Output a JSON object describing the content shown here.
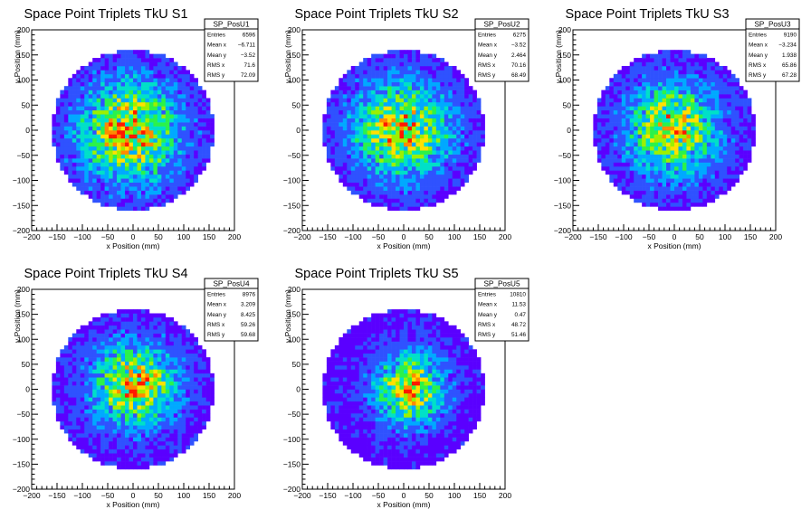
{
  "chart_data": [
    {
      "type": "heatmap",
      "title": "Space Point Triplets TkU S1",
      "xlabel": "x Position (mm)",
      "ylabel": "y Position (mm)",
      "xlim": [
        -200,
        200
      ],
      "ylim": [
        -200,
        200
      ],
      "xticks": [
        "−200",
        "−150",
        "−100",
        "−50",
        "0",
        "50",
        "100",
        "150",
        "200"
      ],
      "yticks": [
        "−200",
        "−150",
        "−100",
        "−50",
        "0",
        "50",
        "100",
        "150",
        "200"
      ],
      "stats": {
        "name": "SP_PosU1",
        "rows": [
          [
            "Entries",
            "6596"
          ],
          [
            "Mean x",
            "−6.711"
          ],
          [
            "Mean y",
            "−3.52"
          ],
          [
            "RMS x",
            "71.6"
          ],
          [
            "RMS y",
            "72.09"
          ]
        ]
      },
      "distribution": {
        "radius": 160,
        "mean_x": -6.711,
        "mean_y": -3.52,
        "rms_x": 71.6,
        "rms_y": 72.09,
        "entries": 6596
      }
    },
    {
      "type": "heatmap",
      "title": "Space Point Triplets TkU S2",
      "xlabel": "x Position (mm)",
      "ylabel": "y Position (mm)",
      "xlim": [
        -200,
        200
      ],
      "ylim": [
        -200,
        200
      ],
      "xticks": [
        "−200",
        "−150",
        "−100",
        "−50",
        "0",
        "50",
        "100",
        "150",
        "200"
      ],
      "yticks": [
        "−200",
        "−150",
        "−100",
        "−50",
        "0",
        "50",
        "100",
        "150",
        "200"
      ],
      "stats": {
        "name": "SP_PosU2",
        "rows": [
          [
            "Entries",
            "6275"
          ],
          [
            "Mean x",
            "−3.52"
          ],
          [
            "Mean y",
            "2.464"
          ],
          [
            "RMS x",
            "70.16"
          ],
          [
            "RMS y",
            "68.49"
          ]
        ]
      },
      "distribution": {
        "radius": 160,
        "mean_x": -3.52,
        "mean_y": 2.464,
        "rms_x": 70.16,
        "rms_y": 68.49,
        "entries": 6275
      }
    },
    {
      "type": "heatmap",
      "title": "Space Point Triplets TkU S3",
      "xlabel": "x Position (mm)",
      "ylabel": "y Position (mm)",
      "xlim": [
        -200,
        200
      ],
      "ylim": [
        -200,
        200
      ],
      "xticks": [
        "−200",
        "−150",
        "−100",
        "−50",
        "0",
        "50",
        "100",
        "150",
        "200"
      ],
      "yticks": [
        "−200",
        "−150",
        "−100",
        "−50",
        "0",
        "50",
        "100",
        "150",
        "200"
      ],
      "stats": {
        "name": "SP_PosU3",
        "rows": [
          [
            "Entries",
            "9190"
          ],
          [
            "Mean x",
            "−3.234"
          ],
          [
            "Mean y",
            "1.938"
          ],
          [
            "RMS x",
            "65.86"
          ],
          [
            "RMS y",
            "67.28"
          ]
        ]
      },
      "distribution": {
        "radius": 160,
        "mean_x": -3.234,
        "mean_y": 1.938,
        "rms_x": 65.86,
        "rms_y": 67.28,
        "entries": 9190
      }
    },
    {
      "type": "heatmap",
      "title": "Space Point Triplets TkU S4",
      "xlabel": "x Position (mm)",
      "ylabel": "y Position (mm)",
      "xlim": [
        -200,
        200
      ],
      "ylim": [
        -200,
        200
      ],
      "xticks": [
        "−200",
        "−150",
        "−100",
        "−50",
        "0",
        "50",
        "100",
        "150",
        "200"
      ],
      "yticks": [
        "−200",
        "−150",
        "−100",
        "−50",
        "0",
        "50",
        "100",
        "150",
        "200"
      ],
      "stats": {
        "name": "SP_PosU4",
        "rows": [
          [
            "Entries",
            "8976"
          ],
          [
            "Mean x",
            "3.209"
          ],
          [
            "Mean y",
            "8.425"
          ],
          [
            "RMS x",
            "59.26"
          ],
          [
            "RMS y",
            "59.68"
          ]
        ]
      },
      "distribution": {
        "radius": 160,
        "mean_x": 3.209,
        "mean_y": 8.425,
        "rms_x": 59.26,
        "rms_y": 59.68,
        "entries": 8976
      }
    },
    {
      "type": "heatmap",
      "title": "Space Point Triplets TkU S5",
      "xlabel": "x Position (mm)",
      "ylabel": "y Position (mm)",
      "xlim": [
        -200,
        200
      ],
      "ylim": [
        -200,
        200
      ],
      "xticks": [
        "−200",
        "−150",
        "−100",
        "−50",
        "0",
        "50",
        "100",
        "150",
        "200"
      ],
      "yticks": [
        "−200",
        "−150",
        "−100",
        "−50",
        "0",
        "50",
        "100",
        "150",
        "200"
      ],
      "stats": {
        "name": "SP_PosU5",
        "rows": [
          [
            "Entries",
            "10810"
          ],
          [
            "Mean x",
            "11.53"
          ],
          [
            "Mean y",
            "0.47"
          ],
          [
            "RMS x",
            "48.72"
          ],
          [
            "RMS y",
            "51.46"
          ]
        ]
      },
      "distribution": {
        "radius": 160,
        "mean_x": 11.53,
        "mean_y": 0.47,
        "rms_x": 48.72,
        "rms_y": 51.46,
        "entries": 10810
      }
    }
  ],
  "colors": {
    "palette": [
      "#5a00ff",
      "#2f52ff",
      "#00a9ff",
      "#00e0c8",
      "#2bf24a",
      "#9cf000",
      "#ffe000",
      "#ff8a00",
      "#ff1800"
    ],
    "axis": "#000000",
    "frame": "#000000",
    "background": "#ffffff"
  }
}
